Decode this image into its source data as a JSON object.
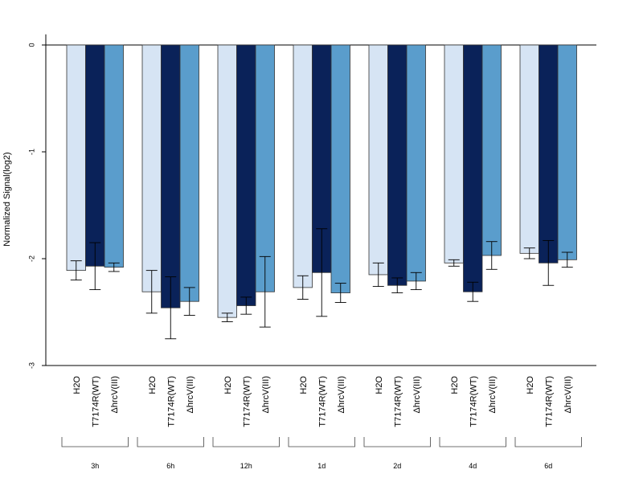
{
  "chart_data": {
    "type": "bar",
    "ylabel": "Normalized Signal(log2)",
    "ylim": [
      -3,
      0.1
    ],
    "yticks": [
      0,
      -1,
      -2,
      -3
    ],
    "conditions": [
      "H2O",
      "T7174R(WT)",
      "ΔhrcV(III)"
    ],
    "groups": [
      "3h",
      "6h",
      "12h",
      "1d",
      "2d",
      "4d",
      "6d"
    ],
    "colors": [
      "#d6e4f4",
      "#0a2259",
      "#5a9dcc"
    ],
    "series": [
      {
        "values": [
          -2.11,
          -2.31,
          -2.55,
          -2.27,
          -2.15,
          -2.04,
          -1.95
        ],
        "err": [
          0.09,
          0.2,
          0.04,
          0.11,
          0.11,
          0.03,
          0.05
        ]
      },
      {
        "values": [
          -2.07,
          -2.46,
          -2.44,
          -2.13,
          -2.25,
          -2.31,
          -2.04
        ],
        "err": [
          0.22,
          0.29,
          0.08,
          0.41,
          0.07,
          0.09,
          0.21
        ]
      },
      {
        "values": [
          -2.08,
          -2.4,
          -2.31,
          -2.32,
          -2.21,
          -1.97,
          -2.01
        ],
        "err": [
          0.04,
          0.13,
          0.33,
          0.09,
          0.08,
          0.13,
          0.07
        ]
      }
    ]
  }
}
